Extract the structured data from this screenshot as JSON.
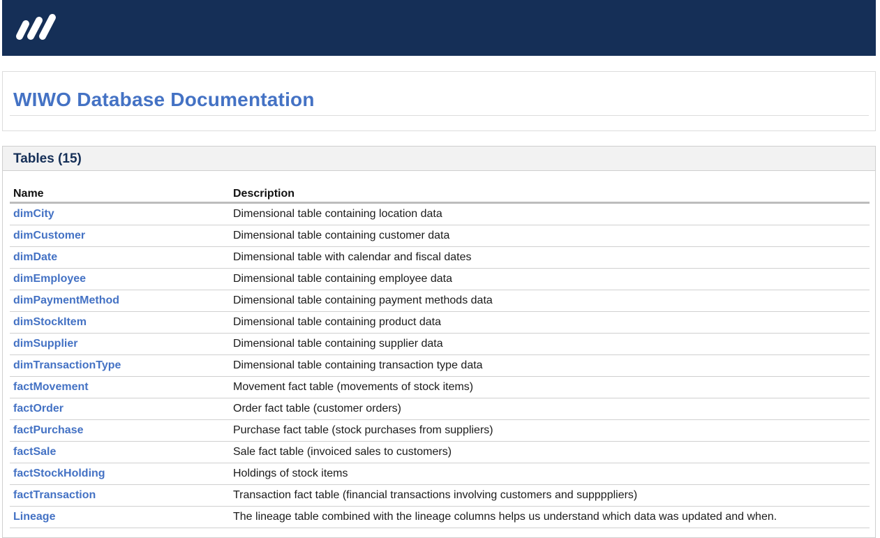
{
  "header": {
    "logo": "wiwo-logo",
    "bg_color": "#152f57"
  },
  "page": {
    "title": "WIWO Database Documentation",
    "accent_color": "#4472c4"
  },
  "tables_panel": {
    "title": "Tables (15)",
    "columns": [
      "Name",
      "Description"
    ],
    "rows": [
      {
        "name": "dimCity",
        "description": "Dimensional table containing location data"
      },
      {
        "name": "dimCustomer",
        "description": "Dimensional table containing customer data"
      },
      {
        "name": "dimDate",
        "description": "Dimensional table with calendar and fiscal dates"
      },
      {
        "name": "dimEmployee",
        "description": "Dimensional table containing employee data"
      },
      {
        "name": "dimPaymentMethod",
        "description": "Dimensional table containing payment methods data"
      },
      {
        "name": "dimStockItem",
        "description": "Dimensional table containing product data"
      },
      {
        "name": "dimSupplier",
        "description": "Dimensional table containing supplier data"
      },
      {
        "name": "dimTransactionType",
        "description": "Dimensional table containing transaction type data"
      },
      {
        "name": "factMovement",
        "description": "Movement fact table (movements of stock items)"
      },
      {
        "name": "factOrder",
        "description": "Order fact table (customer orders)"
      },
      {
        "name": "factPurchase",
        "description": "Purchase fact table (stock purchases from suppliers)"
      },
      {
        "name": "factSale",
        "description": "Sale fact table (invoiced sales to customers)"
      },
      {
        "name": "factStockHolding",
        "description": "Holdings of stock items"
      },
      {
        "name": "factTransaction",
        "description": "Transaction fact table (financial transactions involving customers and suppppliers)"
      },
      {
        "name": "Lineage",
        "description": "The lineage table combined with the lineage columns helps us understand which data was updated and when."
      }
    ]
  }
}
